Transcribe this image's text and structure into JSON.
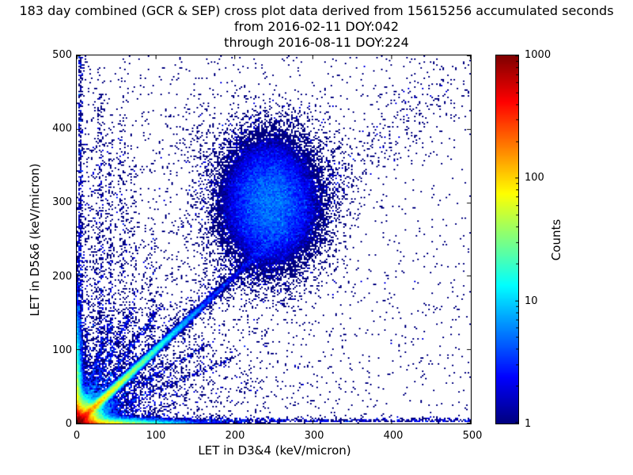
{
  "chart_data": {
    "type": "heatmap",
    "title": "183 day combined (GCR & SEP) cross plot data derived from 15615256 accumulated seconds",
    "subtitles": [
      "from 2016-02-11 DOY:042",
      "through 2016-08-11 DOY:224"
    ],
    "xlabel": "LET in D3&4 (keV/micron)",
    "ylabel": "LET in D5&6 (keV/micron)",
    "xlim": [
      0,
      500
    ],
    "ylim": [
      0,
      500
    ],
    "xticks": [
      0,
      100,
      200,
      300,
      400,
      500
    ],
    "yticks": [
      0,
      100,
      200,
      300,
      400,
      500
    ],
    "grid": false,
    "colorbar": {
      "label": "Counts",
      "scale": "log",
      "min": 1,
      "max": 1000,
      "ticks": [
        1,
        10,
        100,
        1000
      ],
      "colormap": "jet",
      "jet_stops": [
        "#00007f",
        "#0000ff",
        "#00ffff",
        "#ffff00",
        "#ff0000",
        "#7f0000"
      ]
    },
    "density_model": {
      "seed": 20160211,
      "bin_size": 2,
      "analytic_fields": [
        {
          "kind": "radial_exp",
          "amplitude": 2400,
          "scale": 6.5
        },
        {
          "kind": "axis_band",
          "axis": "x",
          "amplitude": 420,
          "along_scale": 35,
          "cross_scale": 2.5
        },
        {
          "kind": "axis_band",
          "axis": "y",
          "amplitude": 260,
          "along_scale": 40,
          "cross_scale": 2.5
        },
        {
          "kind": "diagonal_ridge",
          "amplitude": 200,
          "along_scale": 60,
          "cross_scale": 2.5,
          "length": 380
        },
        {
          "kind": "gauss2d",
          "amplitude": 5,
          "cx": 245,
          "cy": 300,
          "sx": 35,
          "sy": 50
        }
      ],
      "point_clusters": [
        {
          "kind": "scatter_exp",
          "points": 5000,
          "scale": 110
        },
        {
          "kind": "uniform",
          "points": 1400
        },
        {
          "kind": "diag",
          "points": 1500,
          "length": 470,
          "exp": 1.5,
          "spread_near": 3,
          "spread_far": 26
        },
        {
          "kind": "blob",
          "points": 800,
          "cx": 245,
          "cy": 300,
          "sx": 36,
          "sy": 50
        },
        {
          "kind": "blob",
          "points": 400,
          "cx": 160,
          "cy": 360,
          "sx": 70,
          "sy": 70
        },
        {
          "kind": "blob",
          "points": 450,
          "cx": 18,
          "cy": 230,
          "sx": 14,
          "sy": 130
        },
        {
          "kind": "vline",
          "points": 280,
          "x": 30,
          "ymax": 450,
          "width": 2.5,
          "exp": 1.25
        },
        {
          "kind": "vline",
          "points": 220,
          "x": 43,
          "ymax": 420,
          "width": 2.5,
          "exp": 1.25
        },
        {
          "kind": "vline",
          "points": 200,
          "x": 58,
          "ymax": 470,
          "width": 3,
          "exp": 1.25
        },
        {
          "kind": "vline",
          "points": 130,
          "x": 72,
          "ymax": 350,
          "width": 3,
          "exp": 1.25
        },
        {
          "kind": "vline",
          "points": 110,
          "x": 95,
          "ymax": 280,
          "width": 3,
          "exp": 1.25
        },
        {
          "kind": "ray",
          "points": 450,
          "slope": 1.5,
          "rmax": 190
        },
        {
          "kind": "ray",
          "points": 380,
          "slope": 2.2,
          "rmax": 170
        },
        {
          "kind": "ray",
          "points": 300,
          "slope": 3.2,
          "rmax": 150
        },
        {
          "kind": "ray",
          "points": 320,
          "slope": 0.65,
          "rmax": 200
        },
        {
          "kind": "ray",
          "points": 280,
          "slope": 0.45,
          "rmax": 220
        },
        {
          "kind": "hband",
          "points": 800,
          "y": 2.5,
          "xmax": 500,
          "width": 2.5,
          "exp": 1.2
        },
        {
          "kind": "vband",
          "points": 650,
          "x": 2.5,
          "ymax": 500,
          "width": 2.5,
          "exp": 1.1
        }
      ]
    }
  }
}
